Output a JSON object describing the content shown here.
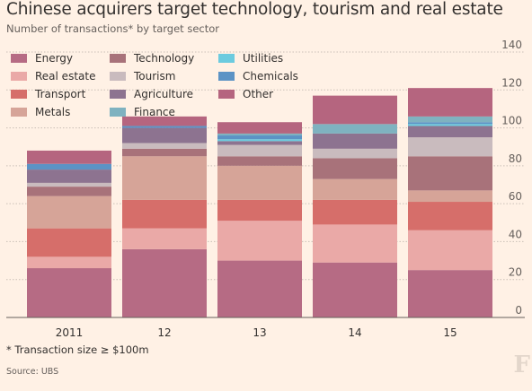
{
  "title": "Chinese acquirers target technology, tourism and real estate",
  "subtitle": "Number of transactions* by target sector",
  "footnote": "* Transaction size ≥ $100m",
  "source": "Source: UBS",
  "logo": "F",
  "chart_data": {
    "type": "bar",
    "stacked": true,
    "categories": [
      "2011",
      "12",
      "13",
      "14",
      "15"
    ],
    "ylim": [
      0,
      140
    ],
    "yticks": [
      0,
      20,
      40,
      60,
      80,
      100,
      120,
      140
    ],
    "grid": true,
    "legend_position": "top-left",
    "series": [
      {
        "name": "Energy",
        "color": "#b66b84",
        "values": [
          26,
          36,
          30,
          29,
          25
        ]
      },
      {
        "name": "Real estate",
        "color": "#eaa9a7",
        "values": [
          6,
          11,
          21,
          20,
          21
        ]
      },
      {
        "name": "Transport",
        "color": "#d66e6a",
        "values": [
          15,
          15,
          11,
          13,
          15
        ]
      },
      {
        "name": "Metals",
        "color": "#d6a498",
        "values": [
          17,
          23,
          18,
          11,
          6
        ]
      },
      {
        "name": "Technology",
        "color": "#a8727a",
        "values": [
          5,
          4,
          5,
          11,
          18
        ]
      },
      {
        "name": "Tourism",
        "color": "#c9bbbe",
        "values": [
          2,
          3,
          6,
          5,
          10
        ]
      },
      {
        "name": "Agriculture",
        "color": "#8d7390",
        "values": [
          7,
          8,
          2,
          8,
          6
        ]
      },
      {
        "name": "Utilities",
        "color": "#6ccbdf",
        "values": [
          0,
          0,
          1,
          0,
          1
        ]
      },
      {
        "name": "Chemicals",
        "color": "#5c93c5",
        "values": [
          3,
          1,
          2,
          0,
          1
        ]
      },
      {
        "name": "Finance",
        "color": "#7fb2c0",
        "values": [
          0,
          0,
          1,
          5,
          3
        ]
      },
      {
        "name": "Other",
        "color": "#b5657f",
        "values": [
          7,
          5,
          6,
          15,
          15
        ]
      }
    ]
  }
}
